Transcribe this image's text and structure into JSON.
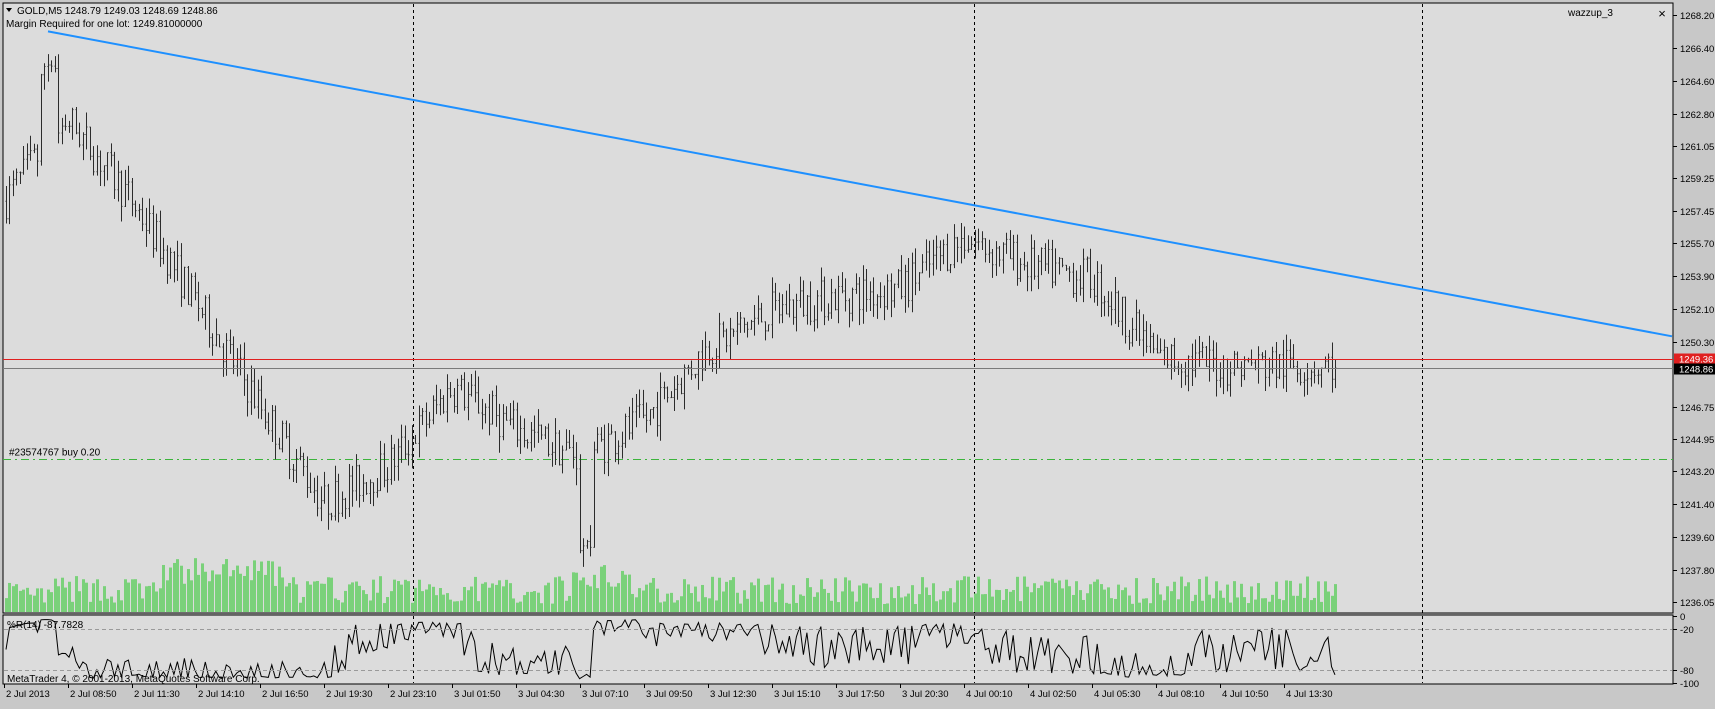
{
  "header": {
    "symbol_line": "GOLD,M5  1248.79 1249.03 1248.69 1248.86",
    "margin_line": "Margin Required for one lot: 1249.81000000",
    "indicator_name": "wazzup_3",
    "close_glyph": "×",
    "menu_icon": "triangle-down-icon"
  },
  "footer": {
    "copyright": "MetaTrader 4, © 2001-2013, MetaQuotes Software Corp."
  },
  "order_line": {
    "label": "#23574767 buy 0.20",
    "price": 1243.9,
    "color": "#3cb43c"
  },
  "colors": {
    "background": "#dcdcdc",
    "bar": "#2c2c2c",
    "volume": "#7ad17a",
    "trendline": "#1e90ff",
    "ask_line": "#e02020",
    "bid_line": "#7a7a7a"
  },
  "chart_data": [
    {
      "type": "bar",
      "name": "GOLD,M5",
      "price_axis": [
        "1268.20",
        "1266.40",
        "1264.60",
        "1262.80",
        "1261.05",
        "1259.25",
        "1257.45",
        "1255.70",
        "1253.90",
        "1252.10",
        "1250.30",
        "1246.75",
        "1244.95",
        "1243.20",
        "1241.40",
        "1239.60",
        "1237.80",
        "1236.05"
      ],
      "ylim": [
        1235.5,
        1268.8
      ],
      "time_labels": [
        "2 Jul 2013",
        "2 Jul 08:50",
        "2 Jul 11:30",
        "2 Jul 14:10",
        "2 Jul 16:50",
        "2 Jul 19:30",
        "2 Jul 23:10",
        "3 Jul 01:50",
        "3 Jul 04:30",
        "3 Jul 07:10",
        "3 Jul 09:50",
        "3 Jul 12:30",
        "3 Jul 15:10",
        "3 Jul 17:50",
        "3 Jul 20:30",
        "4 Jul 00:10",
        "4 Jul 02:50",
        "4 Jul 05:30",
        "4 Jul 08:10",
        "4 Jul 10:50",
        "4 Jul 13:30"
      ],
      "day_separators": [
        "2 Jul 23:10",
        "4 Jul 00:10",
        "5 Jul"
      ],
      "anchors": [
        {
          "t": "2 Jul 2013",
          "price": 1258.0
        },
        {
          "t": "2 Jul 08:50",
          "price": 1262.5
        },
        {
          "t": "2 Jul 11:30",
          "price": 1258.0
        },
        {
          "t": "2 Jul 14:10",
          "price": 1252.5
        },
        {
          "t": "2 Jul 16:50",
          "price": 1246.8
        },
        {
          "t": "2 Jul 19:30",
          "price": 1241.5
        },
        {
          "t": "2 Jul 23:10",
          "price": 1243.5
        },
        {
          "t": "3 Jul 01:50",
          "price": 1247.8
        },
        {
          "t": "3 Jul 04:30",
          "price": 1245.5
        },
        {
          "t": "3 Jul 07:10",
          "price": 1244.0
        },
        {
          "t": "3 Jul 09:50",
          "price": 1246.0
        },
        {
          "t": "3 Jul 12:30",
          "price": 1250.0
        },
        {
          "t": "3 Jul 15:10",
          "price": 1252.0
        },
        {
          "t": "3 Jul 17:50",
          "price": 1252.8
        },
        {
          "t": "3 Jul 20:30",
          "price": 1253.2
        },
        {
          "t": "4 Jul 00:10",
          "price": 1256.0
        },
        {
          "t": "4 Jul 02:50",
          "price": 1254.5
        },
        {
          "t": "4 Jul 05:30",
          "price": 1253.8
        },
        {
          "t": "4 Jul 08:10",
          "price": 1249.5
        },
        {
          "t": "4 Jul 10:50",
          "price": 1249.0
        },
        {
          "t": "4 Jul 13:30",
          "price": 1249.0
        }
      ],
      "high_point": {
        "t": "2 Jul 08:50",
        "price": 1267.3
      },
      "low_point": {
        "t": "3 Jul 07:10",
        "price": 1237.5
      },
      "last_bar": {
        "open": 1248.79,
        "high": 1249.03,
        "low": 1248.69,
        "close": 1248.86
      },
      "ask_price": 1249.36,
      "bid_price": 1248.86,
      "ask_label": "1249.36",
      "bid_label": "1248.86",
      "trendline": [
        {
          "t": "2 Jul 08:50",
          "price": 1267.3
        },
        {
          "t": "5 Jul",
          "price": 1250.6
        }
      ],
      "volume_max": 1
    },
    {
      "type": "line",
      "name": "%R(14) -87.7828",
      "ylim": [
        -100,
        0
      ],
      "levels": [
        -20,
        -80
      ],
      "level_labels": [
        "0",
        "-20",
        "-80",
        "-100"
      ],
      "last_value": -87.7828
    }
  ]
}
